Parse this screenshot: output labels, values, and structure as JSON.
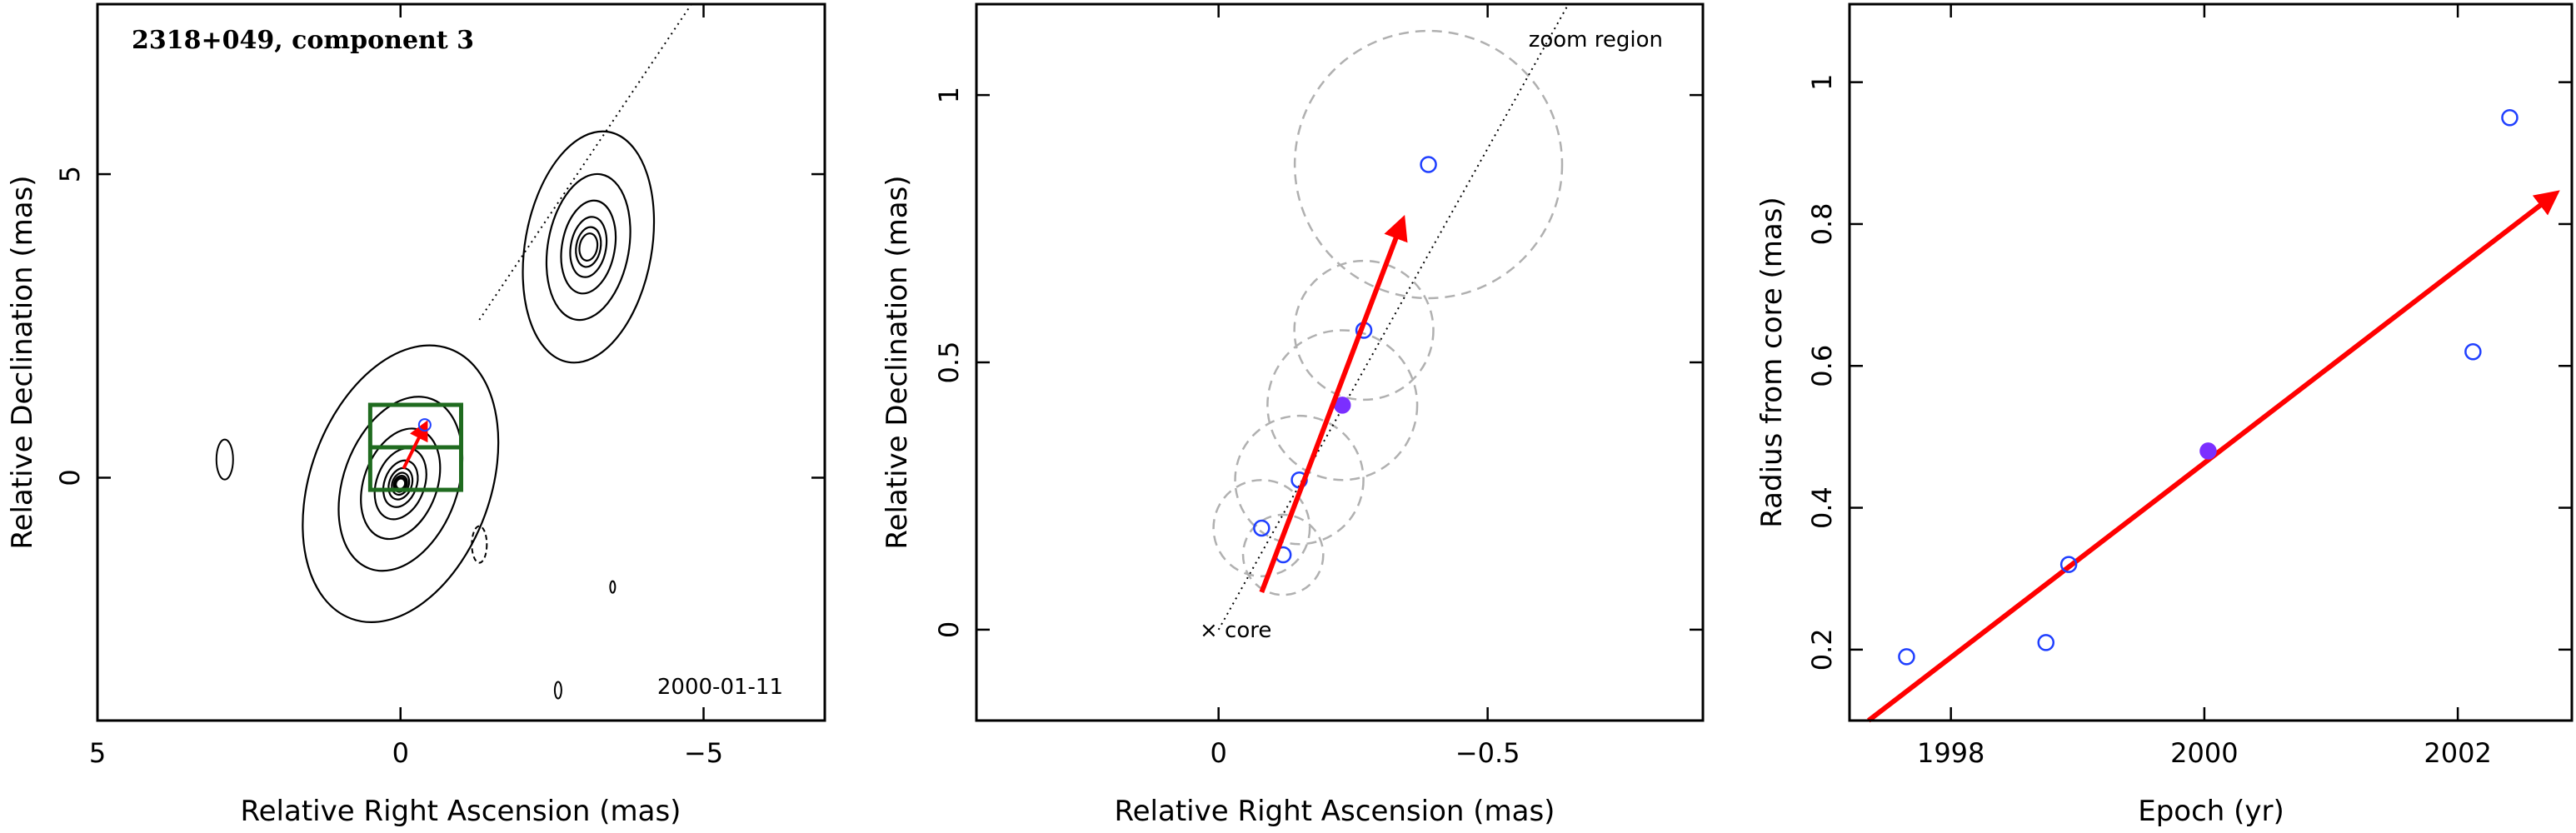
{
  "chart_data": [
    {
      "type": "contour",
      "title": "2318+049, component 3",
      "date_label": "2000-01-11",
      "xlabel": "Relative Right Ascension (mas)",
      "ylabel": "Relative Declination (mas)",
      "xlim": [
        5,
        -7
      ],
      "ylim": [
        -4,
        7.8
      ],
      "xticks": [
        5,
        0,
        -5
      ],
      "xtick_labels": [
        "5",
        "0",
        "−5"
      ],
      "yticks": [
        0,
        5
      ],
      "ytick_labels": [
        "0",
        "5"
      ],
      "sources": [
        {
          "name": "core",
          "x": 0.0,
          "y": -0.1,
          "sx": 0.65,
          "sy": 1.05,
          "angle": 20,
          "peak": 10,
          "levels": 10
        },
        {
          "name": "jet",
          "x": -3.1,
          "y": 3.8,
          "sx": 0.45,
          "sy": 0.85,
          "angle": 10,
          "peak": 6,
          "levels": 6
        }
      ],
      "jet_axis": {
        "from": [
          -1.3,
          2.6
        ],
        "to": [
          -4.8,
          7.8
        ]
      },
      "zoom_box": {
        "x": [
          0.5,
          -1.0
        ],
        "y": [
          -0.2,
          1.2
        ]
      },
      "arrow": {
        "from": [
          -0.05,
          0.15
        ],
        "to": [
          -0.4,
          0.85
        ]
      },
      "marker": {
        "x": -0.4,
        "y": 0.87
      },
      "colors": {
        "contour": "#000000",
        "zoom_box": "#1f6b1f",
        "arrow": "#ff0000",
        "marker": "#1f3fff"
      }
    },
    {
      "type": "scatter",
      "label": "zoom region",
      "core_label": "× core",
      "xlabel": "Relative Right Ascension (mas)",
      "ylabel": "Relative Declination (mas)",
      "xlim": [
        0.45,
        -0.9
      ],
      "ylim": [
        -0.17,
        1.17
      ],
      "xticks": [
        0,
        -0.5
      ],
      "xtick_labels": [
        "0",
        "−0.5"
      ],
      "yticks": [
        0,
        0.5,
        1
      ],
      "ytick_labels": [
        "0",
        "0.5",
        "1"
      ],
      "points": [
        {
          "x": -0.08,
          "y": 0.19,
          "r": 0.09,
          "filled": false
        },
        {
          "x": -0.12,
          "y": 0.14,
          "r": 0.075,
          "filled": false
        },
        {
          "x": -0.15,
          "y": 0.28,
          "r": 0.12,
          "filled": false
        },
        {
          "x": -0.23,
          "y": 0.42,
          "r": 0.14,
          "filled": true
        },
        {
          "x": -0.27,
          "y": 0.56,
          "r": 0.13,
          "filled": false
        },
        {
          "x": -0.39,
          "y": 0.87,
          "r": 0.25,
          "filled": false
        }
      ],
      "jet_axis": {
        "from": [
          0,
          0
        ],
        "to": [
          -0.65,
          1.17
        ]
      },
      "arrow": {
        "from": [
          -0.08,
          0.07
        ],
        "to": [
          -0.34,
          0.76
        ]
      },
      "colors": {
        "marker": "#1f3fff",
        "filled": "#7b2fff",
        "circle": "#b0b0b0",
        "arrow": "#ff0000"
      }
    },
    {
      "type": "scatter",
      "xlabel": "Epoch (yr)",
      "ylabel": "Radius from core (mas)",
      "xlim": [
        1997.2,
        2002.9
      ],
      "ylim": [
        0.1,
        1.11
      ],
      "xticks": [
        1998,
        2000,
        2002
      ],
      "xtick_labels": [
        "1998",
        "2000",
        "2002"
      ],
      "yticks": [
        0.2,
        0.4,
        0.6,
        0.8,
        1.0
      ],
      "ytick_labels": [
        "0.2",
        "0.4",
        "0.6",
        "0.8",
        "1"
      ],
      "points": [
        {
          "x": 1997.65,
          "y": 0.19,
          "filled": false
        },
        {
          "x": 1998.75,
          "y": 0.21,
          "filled": false
        },
        {
          "x": 1998.93,
          "y": 0.32,
          "filled": false
        },
        {
          "x": 2000.03,
          "y": 0.48,
          "filled": true
        },
        {
          "x": 2002.12,
          "y": 0.62,
          "filled": false
        },
        {
          "x": 2002.41,
          "y": 0.95,
          "filled": false
        }
      ],
      "fit_line": {
        "from": [
          1997.35,
          0.1
        ],
        "to": [
          2002.75,
          0.84
        ]
      },
      "colors": {
        "marker": "#1f3fff",
        "filled": "#7b2fff",
        "fit": "#ff0000"
      }
    }
  ]
}
